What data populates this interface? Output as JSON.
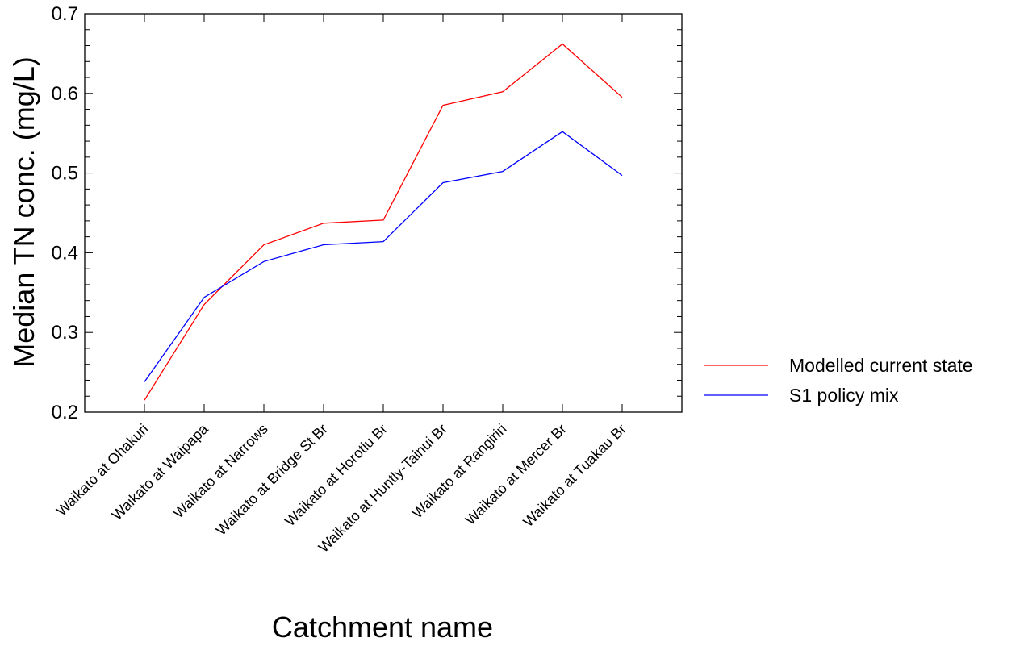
{
  "chart_data": {
    "type": "line",
    "title": "",
    "xlabel": "Catchment name",
    "ylabel": "Median TN conc. (mg/L)",
    "ylim": [
      0.2,
      0.7
    ],
    "yticks": [
      "0.2",
      "0.3",
      "0.4",
      "0.5",
      "0.6",
      "0.7"
    ],
    "yminor_step": 0.02,
    "grid": false,
    "legend_position": "right",
    "categories": [
      "Waikato at Ohakuri",
      "Waikato at Waipapa",
      "Waikato at Narrows",
      "Waikato at Bridge St Br",
      "Waikato at Horotiu Br",
      "Waikato at Huntly-Tainui Br",
      "Waikato at Rangiriri",
      "Waikato at Mercer Br",
      "Waikato at Tuakau Br"
    ],
    "series": [
      {
        "name": "Modelled current state",
        "color": "#ff0000",
        "values": [
          0.215,
          0.335,
          0.41,
          0.437,
          0.441,
          0.585,
          0.602,
          0.662,
          0.595
        ]
      },
      {
        "name": "S1 policy mix",
        "color": "#0000ff",
        "values": [
          0.238,
          0.344,
          0.389,
          0.41,
          0.414,
          0.488,
          0.502,
          0.552,
          0.497
        ]
      }
    ]
  }
}
